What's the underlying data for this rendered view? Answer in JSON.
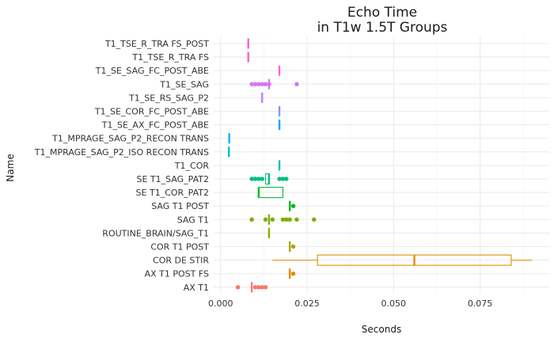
{
  "chart_data": {
    "type": "boxplot",
    "title_line1": "Echo Time",
    "title_line2": "in T1w 1.5T Groups",
    "xlabel": "Seconds",
    "ylabel": "Name",
    "xlim": [
      -0.002,
      0.095
    ],
    "x_ticks": [
      0.0,
      0.025,
      0.05,
      0.075
    ],
    "x_tick_labels": [
      "0.000",
      "0.025",
      "0.050",
      "0.075"
    ],
    "grid": true,
    "legend": "none",
    "categories": [
      "T1_TSE_R_TRA FS_POST",
      "T1_TSE_R_TRA FS",
      "T1_SE_SAG_FC_POST_ABE",
      "T1_SE_SAG",
      "T1_SE_RS_SAG_P2",
      "T1_SE_COR_FC_POST_ABE",
      "T1_SE_AX_FC_POST_ABE",
      "T1_MPRAGE_SAG_P2_RECON TRANS",
      "T1_MPRAGE_SAG_P2_ISO RECON TRANS",
      "T1_COR",
      "SE T1_SAG_PAT2",
      "SE T1_COR_PAT2",
      "SAG T1 POST",
      "SAG T1",
      "ROUTINE_BRAIN/SAG_T1",
      "COR T1 POST",
      "COR DE STIR",
      "AX T1 POST FS",
      "AX T1"
    ],
    "series": [
      {
        "category": "T1_TSE_R_TRA FS_POST",
        "color": "#FF61C3",
        "min": 0.008,
        "q1": 0.008,
        "median": 0.008,
        "q3": 0.008,
        "max": 0.008,
        "outliers": []
      },
      {
        "category": "T1_TSE_R_TRA FS",
        "color": "#FF61C3",
        "min": 0.008,
        "q1": 0.008,
        "median": 0.008,
        "q3": 0.008,
        "max": 0.008,
        "outliers": []
      },
      {
        "category": "T1_SE_SAG_FC_POST_ABE",
        "color": "#F564E3",
        "min": 0.017,
        "q1": 0.017,
        "median": 0.017,
        "q3": 0.017,
        "max": 0.017,
        "outliers": []
      },
      {
        "category": "T1_SE_SAG",
        "color": "#DB72FB",
        "min": 0.014,
        "q1": 0.014,
        "median": 0.014,
        "q3": 0.014,
        "max": 0.014,
        "outliers": [
          0.009,
          0.01,
          0.011,
          0.012,
          0.013,
          0.014,
          0.022
        ]
      },
      {
        "category": "T1_SE_RS_SAG_P2",
        "color": "#B983FF",
        "min": 0.012,
        "q1": 0.012,
        "median": 0.012,
        "q3": 0.012,
        "max": 0.012,
        "outliers": []
      },
      {
        "category": "T1_SE_COR_FC_POST_ABE",
        "color": "#8B93FF",
        "min": 0.017,
        "q1": 0.017,
        "median": 0.017,
        "q3": 0.017,
        "max": 0.017,
        "outliers": []
      },
      {
        "category": "T1_SE_AX_FC_POST_ABE",
        "color": "#00A9FF",
        "min": 0.017,
        "q1": 0.017,
        "median": 0.017,
        "q3": 0.017,
        "max": 0.017,
        "outliers": []
      },
      {
        "category": "T1_MPRAGE_SAG_P2_RECON TRANS",
        "color": "#00B4F0",
        "min": 0.0025,
        "q1": 0.0025,
        "median": 0.0025,
        "q3": 0.0025,
        "max": 0.0025,
        "outliers": []
      },
      {
        "category": "T1_MPRAGE_SAG_P2_ISO RECON TRANS",
        "color": "#00BCD8",
        "min": 0.0024,
        "q1": 0.0024,
        "median": 0.0024,
        "q3": 0.0024,
        "max": 0.0024,
        "outliers": []
      },
      {
        "category": "T1_COR",
        "color": "#00BFC4",
        "min": 0.017,
        "q1": 0.017,
        "median": 0.017,
        "q3": 0.017,
        "max": 0.017,
        "outliers": []
      },
      {
        "category": "SE T1_SAG_PAT2",
        "color": "#00BF7D",
        "min": 0.013,
        "q1": 0.013,
        "median": 0.014,
        "q3": 0.014,
        "max": 0.014,
        "outliers": [
          0.009,
          0.01,
          0.011,
          0.012,
          0.017,
          0.018,
          0.019
        ]
      },
      {
        "category": "SE T1_COR_PAT2",
        "color": "#00BA38",
        "min": 0.011,
        "q1": 0.011,
        "median": 0.011,
        "q3": 0.018,
        "max": 0.018,
        "outliers": []
      },
      {
        "category": "SAG T1 POST",
        "color": "#00B81F",
        "min": 0.02,
        "q1": 0.02,
        "median": 0.02,
        "q3": 0.02,
        "max": 0.02,
        "outliers": [
          0.021
        ]
      },
      {
        "category": "SAG T1",
        "color": "#7CAE00",
        "min": 0.014,
        "q1": 0.014,
        "median": 0.014,
        "q3": 0.014,
        "max": 0.014,
        "outliers": [
          0.009,
          0.013,
          0.015,
          0.018,
          0.019,
          0.02,
          0.022,
          0.027
        ]
      },
      {
        "category": "ROUTINE_BRAIN/SAG_T1",
        "color": "#93AA00",
        "min": 0.014,
        "q1": 0.014,
        "median": 0.014,
        "q3": 0.014,
        "max": 0.014,
        "outliers": []
      },
      {
        "category": "COR T1 POST",
        "color": "#ABA300",
        "min": 0.02,
        "q1": 0.02,
        "median": 0.02,
        "q3": 0.02,
        "max": 0.02,
        "outliers": [
          0.021
        ]
      },
      {
        "category": "COR DE STIR",
        "color": "#D89000",
        "min": 0.015,
        "q1": 0.028,
        "median": 0.056,
        "q3": 0.084,
        "max": 0.09,
        "outliers": []
      },
      {
        "category": "AX T1 POST FS",
        "color": "#E58700",
        "min": 0.02,
        "q1": 0.02,
        "median": 0.02,
        "q3": 0.02,
        "max": 0.02,
        "outliers": [
          0.021
        ]
      },
      {
        "category": "AX T1",
        "color": "#F8766D",
        "min": 0.009,
        "q1": 0.009,
        "median": 0.009,
        "q3": 0.009,
        "max": 0.009,
        "outliers": [
          0.005,
          0.01,
          0.011,
          0.012,
          0.013
        ]
      }
    ]
  }
}
